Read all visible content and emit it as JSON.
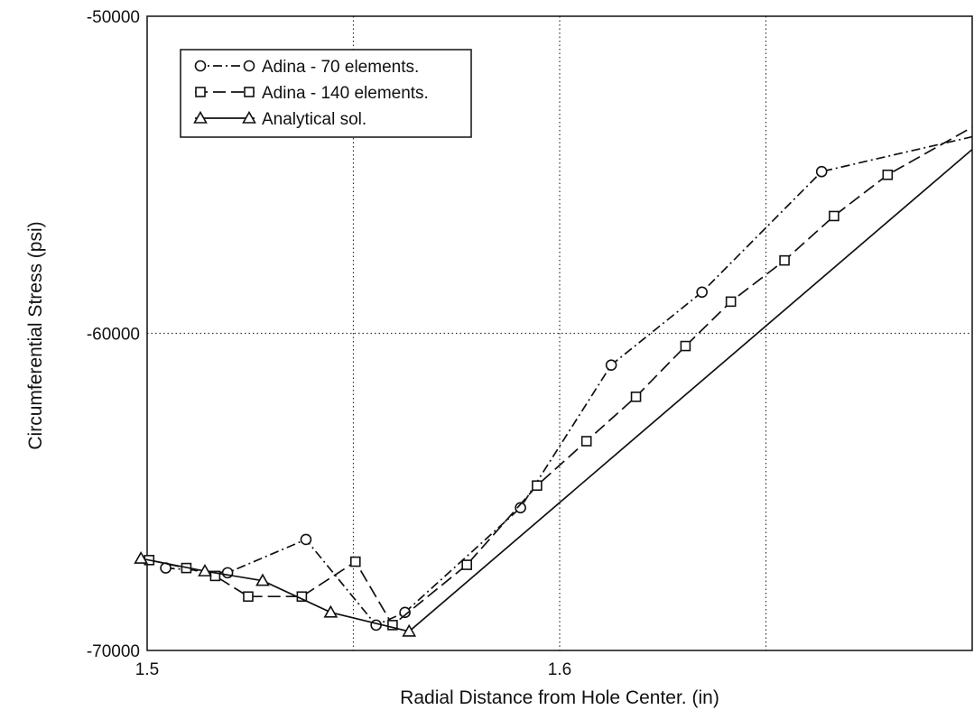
{
  "chart_data": {
    "type": "line",
    "title": "",
    "xlabel": "Radial Distance from Hole Center. (in)",
    "ylabel": "Circumferential Stress (psi)",
    "xlim": [
      1.5,
      1.7
    ],
    "ylim": [
      -70000,
      -50000
    ],
    "x_ticks": [
      1.5,
      1.6
    ],
    "x_tick_labels": [
      "1.5",
      "1.6"
    ],
    "y_ticks": [
      -70000,
      -60000,
      -50000
    ],
    "y_tick_labels": [
      "-70000",
      "-60000",
      "-50000"
    ],
    "grid": true,
    "grid_x": [
      1.55,
      1.6,
      1.65
    ],
    "grid_y": [
      -60000
    ],
    "legend_position": "top-left",
    "series": [
      {
        "name": "Adina - 70 elements.",
        "marker": "circle",
        "dash": "dash-dot",
        "color": "#111111",
        "x": [
          1.5045,
          1.5195,
          1.5385,
          1.5555,
          1.5625,
          1.5905,
          1.6125,
          1.6345,
          1.6635,
          1.7
        ],
        "y": [
          -67400,
          -67550,
          -66500,
          -69200,
          -68800,
          -65500,
          -61000,
          -58700,
          -54900,
          -53800
        ]
      },
      {
        "name": "Adina - 140 elements.",
        "marker": "square",
        "dash": "dash",
        "color": "#111111",
        "x": [
          1.5005,
          1.5095,
          1.5165,
          1.5245,
          1.5375,
          1.5505,
          1.5595,
          1.5775,
          1.5945,
          1.6065,
          1.6185,
          1.6305,
          1.6415,
          1.6545,
          1.6665,
          1.6795,
          1.7
        ],
        "y": [
          -67150,
          -67400,
          -67650,
          -68300,
          -68300,
          -67200,
          -69200,
          -67300,
          -64800,
          -63400,
          -62000,
          -60400,
          -59000,
          -57700,
          -56300,
          -55000,
          -53500
        ]
      },
      {
        "name": "Analytical sol.",
        "marker": "triangle",
        "dash": "solid",
        "color": "#111111",
        "x": [
          1.4985,
          1.514,
          1.528,
          1.5445,
          1.5635,
          1.7
        ],
        "y": [
          -67100,
          -67500,
          -67800,
          -68800,
          -69400,
          -54200
        ]
      }
    ]
  }
}
